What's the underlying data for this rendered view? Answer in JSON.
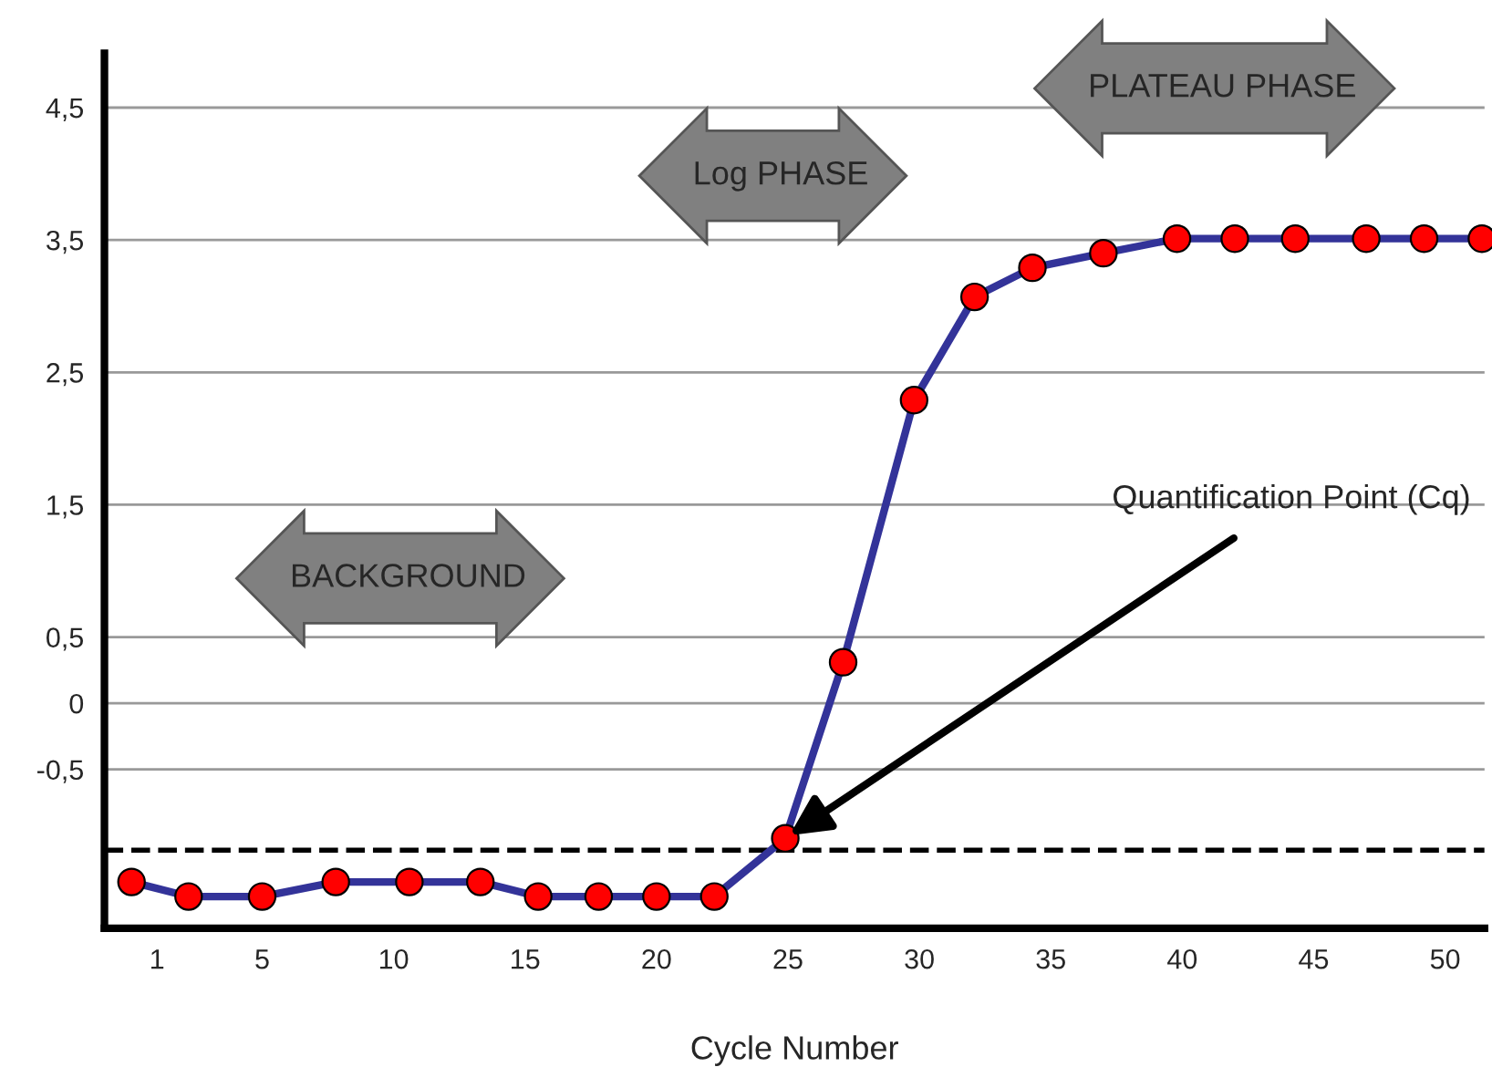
{
  "chart_data": {
    "type": "line",
    "xlabel": "Cycle Number",
    "x": [
      0.03,
      2.2,
      5.0,
      7.8,
      10.6,
      13.3,
      15.5,
      17.8,
      20.0,
      22.2,
      24.9,
      27.1,
      29.8,
      32.1,
      34.3,
      37.0,
      39.8,
      42.0,
      44.3,
      47.0,
      49.2,
      51.4
    ],
    "series": [
      {
        "color": "#333399",
        "colors": [
          "#ff0000",
          "#ff0000",
          "#ff0000",
          "#ff0000",
          "#ff0000",
          "#ff0000",
          "#ff0000",
          "#ff0000",
          "#ff0000",
          "#ff0000",
          "#ff0000",
          "#ff0000",
          "#ff0000",
          "#ff0000",
          "#ff0000",
          "#ff0000",
          "#ff0000",
          "#ff0000",
          "#ff0000",
          "#ff0000",
          "#ff0000",
          "#ff0000"
        ],
        "values": [
          -1.35,
          -1.46,
          -1.46,
          -1.35,
          -1.35,
          -1.35,
          -1.46,
          -1.46,
          -1.46,
          -1.46,
          -1.02,
          0.31,
          2.29,
          3.07,
          3.29,
          3.4,
          3.51,
          3.51,
          3.51,
          3.51,
          3.51,
          3.51
        ]
      }
    ],
    "marker": "circle",
    "line_style": "solid",
    "xlim": [
      -1.0,
      51.5
    ],
    "ylim": [
      -1.7,
      4.91
    ],
    "xticks": [
      1,
      5,
      10,
      15,
      20,
      25,
      30,
      35,
      40,
      45,
      50
    ],
    "yticks": [
      {
        "value": -0.5,
        "label": "-0,5"
      },
      0,
      {
        "value": 0.5,
        "label": "0,5"
      },
      {
        "value": 1.5,
        "label": "1,5"
      },
      {
        "value": 2.5,
        "label": "2,5"
      },
      {
        "value": 3.5,
        "label": "3,5"
      },
      {
        "value": 4.5,
        "label": "4,5"
      }
    ],
    "grid": "y",
    "ref_lines": [
      {
        "axis": "y",
        "value": -1.11,
        "line_style": "dashed",
        "color": "#000000"
      }
    ],
    "annotations": [
      "BACKGROUND",
      "Log PHASE",
      "PLATEAU PHASE",
      {
        "text": "Quantification Point (Cq)",
        "x": 24.9,
        "y": -1.02
      }
    ]
  }
}
